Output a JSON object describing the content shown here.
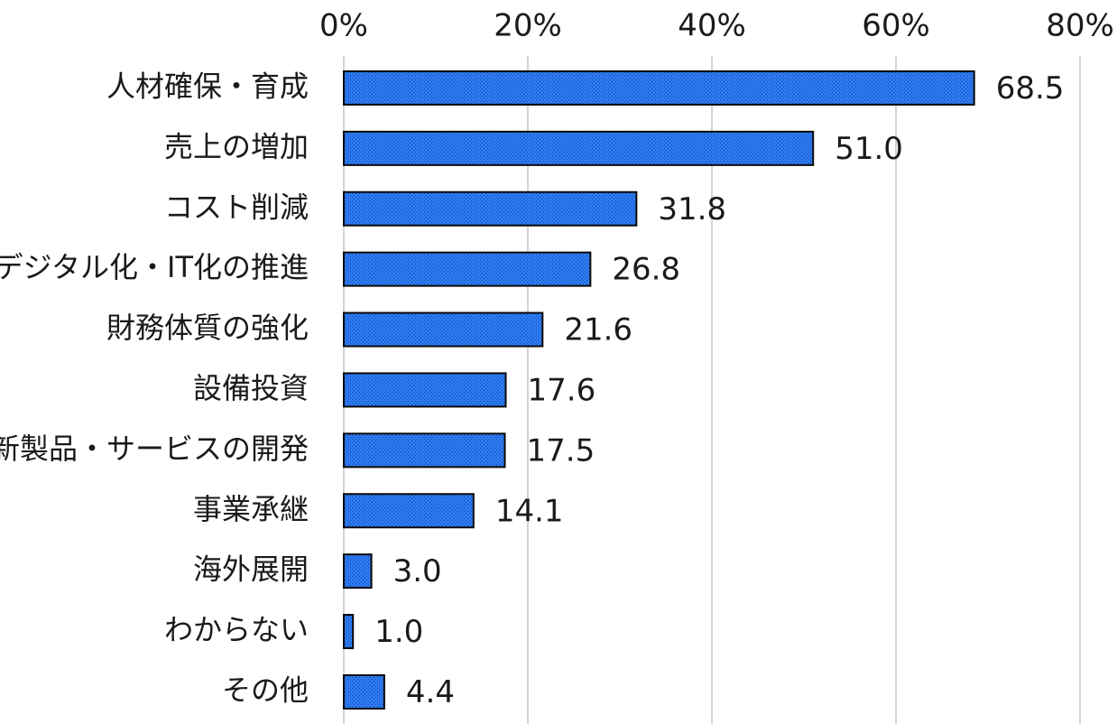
{
  "chart_data": {
    "type": "bar",
    "orientation": "horizontal",
    "categories": [
      "人材確保・育成",
      "売上の増加",
      "コスト削減",
      "デジタル化・IT化の推進",
      "財務体質の強化",
      "設備投資",
      "新製品・サービスの開発",
      "事業承継",
      "海外展開",
      "わからない",
      "その他"
    ],
    "values": [
      68.5,
      51.0,
      31.8,
      26.8,
      21.6,
      17.6,
      17.5,
      14.1,
      3.0,
      1.0,
      4.4
    ],
    "value_labels": [
      "68.5",
      "51.0",
      "31.8",
      "26.8",
      "21.6",
      "17.6",
      "17.5",
      "14.1",
      "3.0",
      "1.0",
      "4.4"
    ],
    "xlim": [
      0,
      80
    ],
    "x_ticks": [
      0,
      20,
      40,
      60,
      80
    ],
    "x_tick_labels": [
      "0%",
      "20%",
      "40%",
      "60%",
      "80%"
    ],
    "x_axis_position": "top",
    "grid": true,
    "legend": "none",
    "bar_color": "#2E7BF0",
    "bar_pattern_color": "#0A3FA8",
    "bar_outline_color": "#0A0A0A",
    "gridline_color": "#D4D4D4"
  }
}
